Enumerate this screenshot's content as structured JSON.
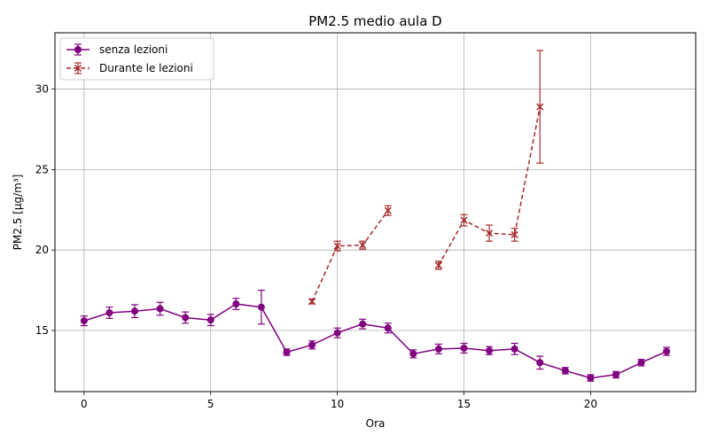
{
  "chart_data": {
    "type": "line",
    "title": "PM2.5 medio aula D",
    "xlabel": "Ora",
    "ylabel": "PM2.5 [µg/m³]",
    "xlim": [
      -1.15,
      24.15
    ],
    "ylim": [
      11.2,
      33.5
    ],
    "xticks": [
      0,
      5,
      10,
      15,
      20
    ],
    "yticks": [
      15,
      20,
      25,
      30
    ],
    "grid": true,
    "legend_position": "top-left",
    "series": [
      {
        "name": "senza lezioni",
        "color": "#800080",
        "marker": "circle",
        "linestyle": "solid",
        "x": [
          0,
          1,
          2,
          3,
          4,
          5,
          6,
          7,
          8,
          9,
          10,
          11,
          12,
          13,
          14,
          15,
          16,
          17,
          18,
          19,
          20,
          21,
          22,
          23
        ],
        "y": [
          15.6,
          16.1,
          16.2,
          16.35,
          15.8,
          15.65,
          16.65,
          16.45,
          13.65,
          14.1,
          14.85,
          15.4,
          15.15,
          13.55,
          13.85,
          13.9,
          13.75,
          13.85,
          13.0,
          12.5,
          12.05,
          12.25,
          13.0,
          13.7
        ],
        "err": [
          0.3,
          0.35,
          0.4,
          0.4,
          0.35,
          0.35,
          0.35,
          1.05,
          0.2,
          0.25,
          0.3,
          0.3,
          0.3,
          0.25,
          0.3,
          0.3,
          0.25,
          0.35,
          0.4,
          0.2,
          0.2,
          0.2,
          0.2,
          0.25
        ]
      },
      {
        "name": "Durante le lezioni",
        "color": "#a52a2a",
        "marker": "x",
        "linestyle": "dashed",
        "x": [
          9,
          10,
          11,
          12,
          13,
          14,
          15,
          16,
          17,
          18
        ],
        "y": [
          16.8,
          20.25,
          20.3,
          22.45,
          null,
          19.05,
          21.85,
          21.05,
          20.95,
          28.9
        ],
        "err": [
          0.15,
          0.3,
          0.25,
          0.3,
          null,
          0.25,
          0.35,
          0.5,
          0.4,
          3.5
        ]
      }
    ]
  }
}
